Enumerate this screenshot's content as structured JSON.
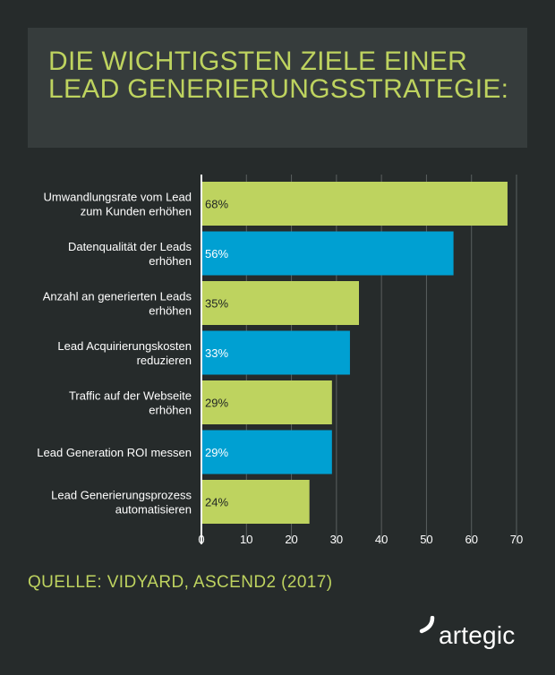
{
  "title": "Die wichtigsten Ziele einer Lead Generierungsstrategie:",
  "source": "QUELLE: VIDYARD, ASCEND2 (2017)",
  "brand": "artegic",
  "colors": {
    "background": "#262b2b",
    "title_box": "#363c3c",
    "accent_green": "#bed35f",
    "accent_blue": "#00a0d2",
    "text_white": "#ffffff",
    "bar_label": "#1e2323",
    "grid": "#5a6060"
  },
  "icons": {
    "logo_mark": "artegic-swoosh-icon"
  },
  "chart_data": {
    "type": "bar",
    "orientation": "horizontal",
    "title": "Die wichtigsten Ziele einer Lead Generierungsstrategie:",
    "categories": [
      [
        "Umwandlungsrate vom Lead",
        "zum Kunden erhöhen"
      ],
      [
        "Datenqualität der Leads",
        "erhöhen"
      ],
      [
        "Anzahl an generierten Leads",
        "erhöhen"
      ],
      [
        "Lead Acquirierungskosten",
        "reduzieren"
      ],
      [
        "Traffic auf der Webseite",
        "erhöhen"
      ],
      [
        "Lead Generation ROI messen"
      ],
      [
        "Lead Generierungsprozess",
        "automatisieren"
      ]
    ],
    "values": [
      68,
      56,
      35,
      33,
      29,
      29,
      24
    ],
    "data_labels": [
      "68%",
      "56%",
      "35%",
      "33%",
      "29%",
      "29%",
      "24%"
    ],
    "bar_colors": [
      "#bed35f",
      "#00a0d2",
      "#bed35f",
      "#00a0d2",
      "#bed35f",
      "#00a0d2",
      "#bed35f"
    ],
    "x_ticks": [
      0,
      10,
      20,
      30,
      40,
      50,
      60,
      70
    ],
    "xlim": [
      0,
      70
    ],
    "xlabel": "",
    "ylabel": "",
    "grid": true,
    "legend": "none"
  }
}
